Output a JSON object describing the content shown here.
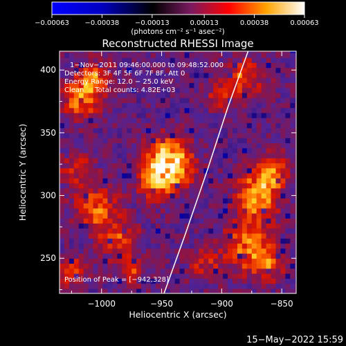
{
  "chart_data": {
    "type": "heatmap",
    "title": "Reconstructed RHESSI Image",
    "xlabel": "Heliocentric X (arcsec)",
    "ylabel": "Heliocentric Y (arcsec)",
    "xlim": [
      -1035,
      -838
    ],
    "ylim": [
      222,
      415
    ],
    "x_ticks": [
      -1000,
      -950,
      -900,
      -850
    ],
    "y_ticks": [
      250,
      300,
      350,
      400
    ],
    "x_tick_labels": [
      "−1000",
      "−950",
      "−900",
      "−850"
    ],
    "y_tick_labels": [
      "250",
      "300",
      "350",
      "400"
    ],
    "colorbar": {
      "range": [
        -0.00063,
        0.00063
      ],
      "tick_values": [
        -0.00063,
        -0.00038,
        -0.00013,
        0.00013,
        0.00038,
        0.00063
      ],
      "tick_labels": [
        "−0.00063",
        "−0.00038",
        "−0.00013",
        "0.00013",
        "0.00038",
        "0.00063"
      ],
      "units_label": "(photons cm⁻² s⁻¹ asec⁻²)",
      "colors": [
        "#0000ff",
        "#000000",
        "#6a2dc8",
        "#ff0000",
        "#ffa500",
        "#ffffff"
      ]
    },
    "annotations": {
      "time": "1−Nov−2011 09:46:00.000 to 09:48:52.000",
      "detectors": "Detectors: 3F 4F 5F 6F 7F 8F, Att 0",
      "energy": "Energy Range: 12.0 − 25.0 keV",
      "clean": "Clean     Total counts: 4.82E+03",
      "peak": "Position of Peak = [−942,328]"
    },
    "limb_curve": [
      [
        -948,
        222
      ],
      [
        -930,
        270
      ],
      [
        -912,
        320
      ],
      [
        -895,
        370
      ],
      [
        -878,
        415
      ]
    ],
    "hotspots": [
      {
        "x": -945,
        "y": 325,
        "sigma": 13,
        "value": 0.00063
      },
      {
        "x": -955,
        "y": 310,
        "sigma": 10,
        "value": 0.00025
      },
      {
        "x": -1018,
        "y": 378,
        "sigma": 11,
        "value": 0.00038
      },
      {
        "x": -1005,
        "y": 395,
        "sigma": 9,
        "value": 0.0003
      },
      {
        "x": -1020,
        "y": 320,
        "sigma": 10,
        "value": 0.0002
      },
      {
        "x": -1005,
        "y": 290,
        "sigma": 12,
        "value": 0.00032
      },
      {
        "x": -985,
        "y": 265,
        "sigma": 11,
        "value": 0.00025
      },
      {
        "x": -870,
        "y": 300,
        "sigma": 12,
        "value": 0.00045
      },
      {
        "x": -858,
        "y": 320,
        "sigma": 9,
        "value": 0.00035
      },
      {
        "x": -878,
        "y": 260,
        "sigma": 13,
        "value": 0.0004
      },
      {
        "x": -860,
        "y": 245,
        "sigma": 9,
        "value": 0.00025
      },
      {
        "x": -880,
        "y": 395,
        "sigma": 10,
        "value": 0.0003
      },
      {
        "x": -900,
        "y": 380,
        "sigma": 8,
        "value": 0.00022
      },
      {
        "x": -915,
        "y": 245,
        "sigma": 9,
        "value": 0.00022
      },
      {
        "x": -975,
        "y": 240,
        "sigma": 8,
        "value": 0.0002
      },
      {
        "x": -1025,
        "y": 240,
        "sigma": 8,
        "value": 0.00022
      }
    ]
  },
  "footer": {
    "date": "15−May−2022 15:59"
  }
}
